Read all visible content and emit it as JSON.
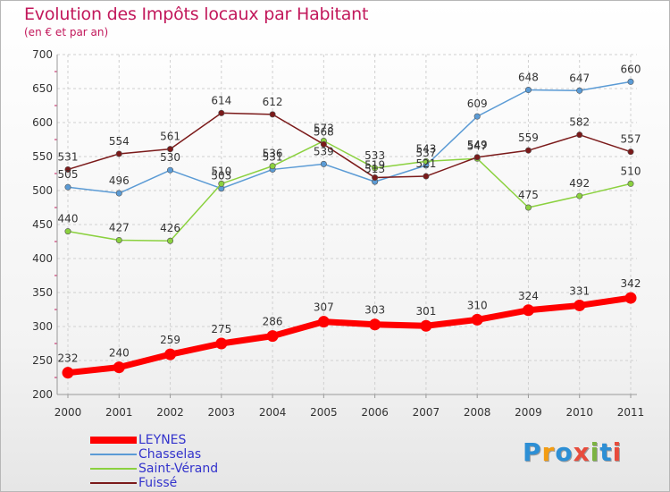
{
  "title": "Evolution des Impôts locaux par Habitant",
  "subtitle": "(en € et par an)",
  "logo": {
    "letters": [
      "P",
      "r",
      "o",
      "x",
      "i",
      "t",
      "i"
    ],
    "colors": [
      "#2d8fd5",
      "#f39c12",
      "#2d8fd5",
      "#e74c3c",
      "#7cb342",
      "#2d8fd5",
      "#e74c3c"
    ]
  },
  "chart_data": {
    "type": "line",
    "x": [
      "2000",
      "2001",
      "2002",
      "2003",
      "2004",
      "2005",
      "2006",
      "2007",
      "2008",
      "2009",
      "2010",
      "2011"
    ],
    "ylim": [
      200,
      700
    ],
    "yticks": [
      "200",
      "250",
      "300",
      "350",
      "400",
      "450",
      "500",
      "550",
      "600",
      "650",
      "700"
    ],
    "grid": true,
    "legend_placement": "bottom-left",
    "series": [
      {
        "name": "LEYNES",
        "color": "#ff0000",
        "emphasized": true,
        "values": [
          232,
          240,
          259,
          275,
          286,
          307,
          303,
          301,
          310,
          324,
          331,
          342
        ],
        "labels": [
          "232",
          "240",
          "259",
          "275",
          "286",
          "307",
          "303",
          "301",
          "310",
          "324",
          "331",
          "342"
        ]
      },
      {
        "name": "Chasselas",
        "color": "#5b9bd5",
        "values": [
          505,
          496,
          530,
          503,
          531,
          539,
          513,
          537,
          609,
          648,
          647,
          660
        ],
        "labels": [
          "505",
          "496",
          "530",
          "503",
          "531",
          "539",
          "513",
          "537",
          "609",
          "648",
          "647",
          "660"
        ]
      },
      {
        "name": "Saint-Vérand",
        "color": "#8bd13f",
        "values": [
          440,
          427,
          426,
          510,
          536,
          573,
          533,
          543,
          547,
          475,
          492,
          510
        ],
        "labels": [
          "440",
          "427",
          "426",
          "510",
          "536",
          "573",
          "533",
          "543",
          "547",
          "475",
          "492",
          "510"
        ]
      },
      {
        "name": "Fuissé",
        "color": "#7b1a1a",
        "values": [
          531,
          554,
          561,
          614,
          612,
          568,
          519,
          521,
          549,
          559,
          582,
          557
        ],
        "labels": [
          "531",
          "554",
          "561",
          "614",
          "612",
          "568",
          "519",
          "521",
          "549",
          "559",
          "582",
          "557"
        ]
      }
    ]
  }
}
